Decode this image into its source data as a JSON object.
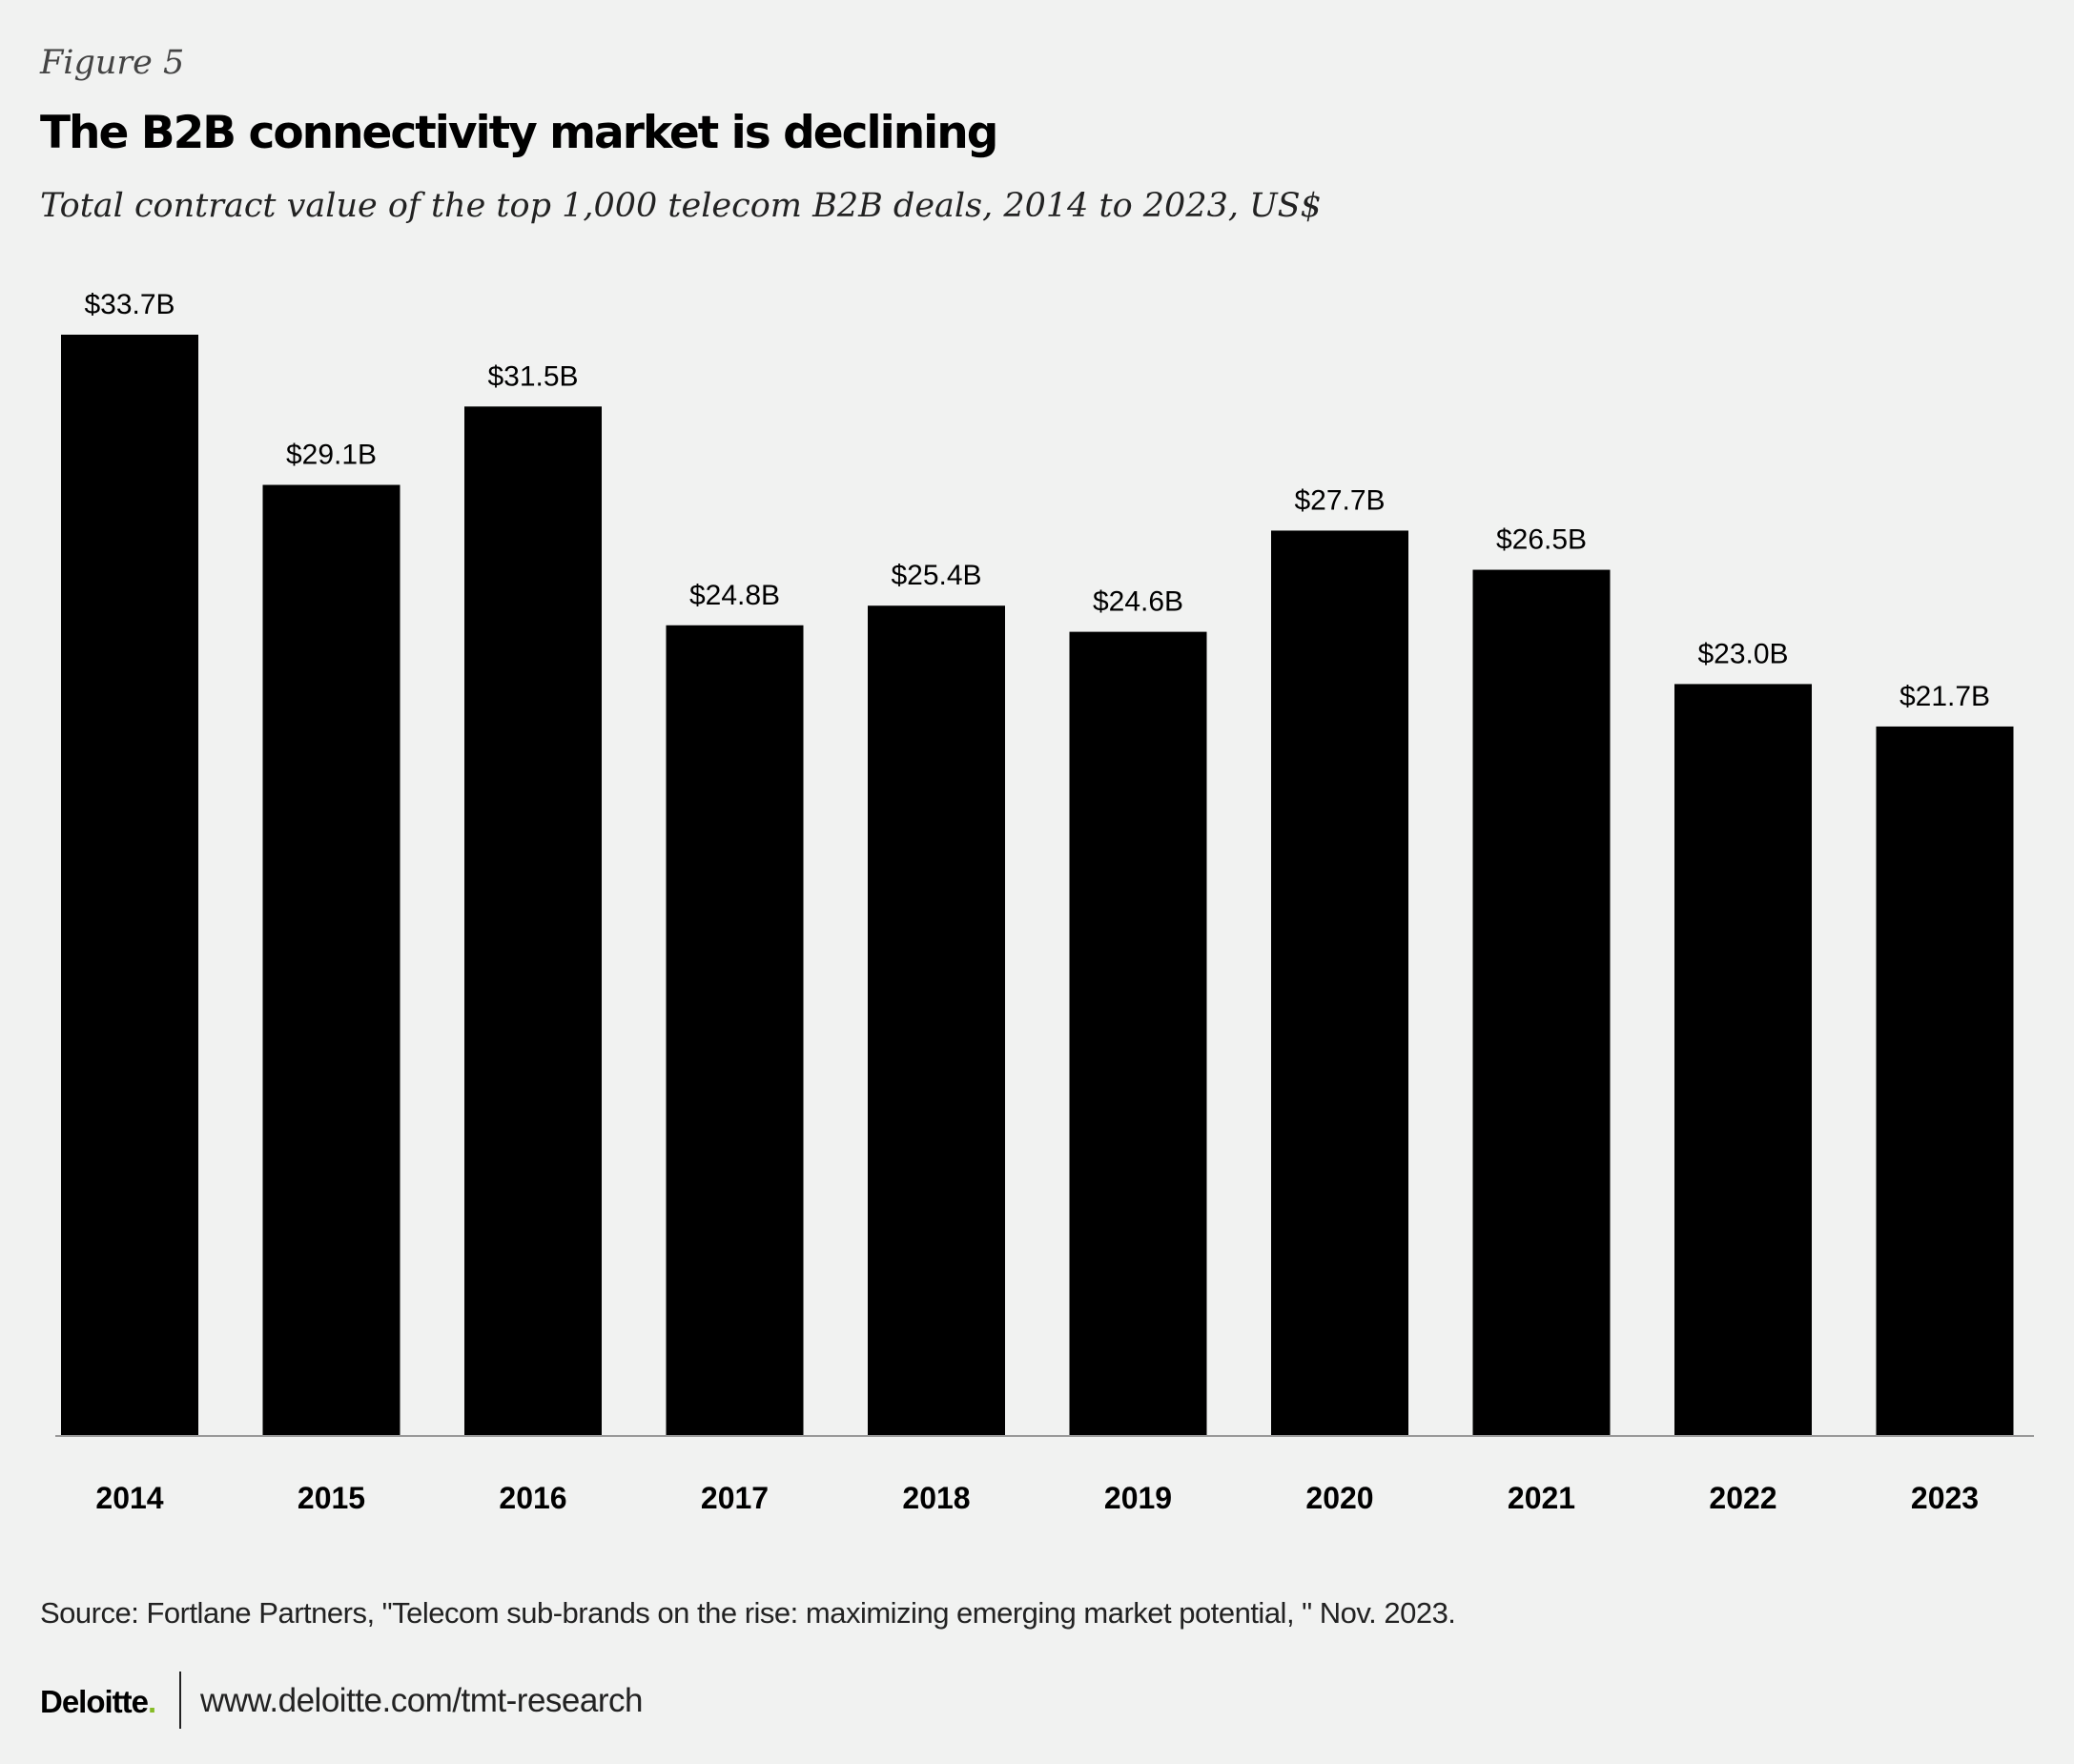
{
  "figure_label": "Figure 5",
  "chart_data": {
    "type": "bar",
    "title": "The B2B connectivity market is declining",
    "subtitle": "Total contract value of the top 1,000 telecom B2B deals, 2014 to 2023, US$",
    "categories": [
      "2014",
      "2015",
      "2016",
      "2017",
      "2018",
      "2019",
      "2020",
      "2021",
      "2022",
      "2023"
    ],
    "values": [
      33.7,
      29.1,
      31.5,
      24.8,
      25.4,
      24.6,
      27.7,
      26.5,
      23.0,
      21.7
    ],
    "data_labels": [
      "$33.7B",
      "$29.1B",
      "$31.5B",
      "$24.8B",
      "$25.4B",
      "$24.6B",
      "$27.7B",
      "$26.5B",
      "$23.0B",
      "$21.7B"
    ],
    "xlabel": "",
    "ylabel": "",
    "ylim": [
      0,
      33.7
    ],
    "grid": false,
    "bar_color": "#000000"
  },
  "source": "Source: Fortlane Partners, \"Telecom sub-brands on the rise: maximizing emerging market potential, \" Nov. 2023.",
  "footer": {
    "logo": "Deloitte",
    "logo_dot": ".",
    "logo_dot_color": "#86bc25",
    "url": "www.deloitte.com/tmt-research"
  }
}
